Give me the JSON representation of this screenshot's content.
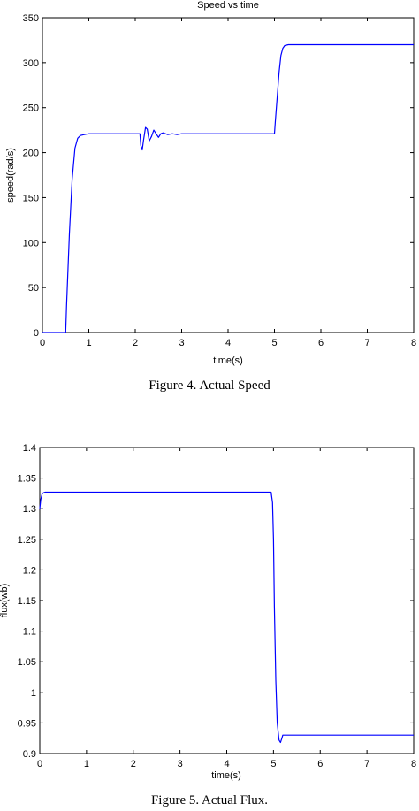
{
  "captions": {
    "fig4": "Figure 4. Actual Speed",
    "fig5": "Figure 5. Actual Flux."
  },
  "chart_data": [
    {
      "type": "line",
      "title": "Speed vs time",
      "xlabel": "time(s)",
      "ylabel": "speed(rad/s)",
      "xlim": [
        0,
        8
      ],
      "ylim": [
        0,
        350
      ],
      "xticks": [
        0,
        1,
        2,
        3,
        4,
        5,
        6,
        7,
        8
      ],
      "yticks": [
        0,
        50,
        100,
        150,
        200,
        250,
        300,
        350
      ],
      "grid": false,
      "line_color": "#0000ff",
      "series": [
        {
          "x": [
            0,
            0.5,
            0.52,
            0.58,
            0.64,
            0.7,
            0.76,
            0.82,
            0.9,
            1.0,
            1.2,
            2.1,
            2.12,
            2.15,
            2.18,
            2.22,
            2.26,
            2.3,
            2.35,
            2.4,
            2.45,
            2.5,
            2.55,
            2.6,
            2.7,
            2.8,
            2.9,
            3.0,
            5.0,
            5.02,
            5.06,
            5.1,
            5.14,
            5.18,
            5.22,
            5.3,
            5.4,
            6.0,
            8.0
          ],
          "y": [
            0,
            0,
            30,
            110,
            170,
            205,
            216,
            219,
            220,
            221,
            221,
            221,
            208,
            203,
            214,
            228,
            226,
            213,
            218,
            225,
            221,
            217,
            221,
            222,
            220,
            221,
            220,
            221,
            221,
            235,
            262,
            290,
            308,
            316,
            319,
            320,
            320,
            320,
            320
          ]
        }
      ]
    },
    {
      "type": "line",
      "title": "",
      "xlabel": "time(s)",
      "ylabel": "flux(wb)",
      "xlim": [
        0,
        8
      ],
      "ylim": [
        0.9,
        1.4
      ],
      "xticks": [
        0,
        1,
        2,
        3,
        4,
        5,
        6,
        7,
        8
      ],
      "yticks": [
        0.9,
        0.95,
        1,
        1.05,
        1.1,
        1.15,
        1.2,
        1.25,
        1.3,
        1.35,
        1.4
      ],
      "grid": false,
      "line_color": "#0000ff",
      "series": [
        {
          "x": [
            0,
            0.02,
            0.05,
            0.08,
            0.12,
            0.2,
            1.0,
            4.95,
            4.98,
            5.0,
            5.02,
            5.05,
            5.08,
            5.12,
            5.15,
            5.18,
            5.2,
            5.25,
            5.3,
            6.0,
            8.0
          ],
          "y": [
            1.3,
            1.315,
            1.324,
            1.326,
            1.327,
            1.327,
            1.327,
            1.327,
            1.31,
            1.25,
            1.14,
            1.02,
            0.95,
            0.922,
            0.918,
            0.925,
            0.93,
            0.93,
            0.93,
            0.93,
            0.93
          ]
        }
      ]
    }
  ]
}
